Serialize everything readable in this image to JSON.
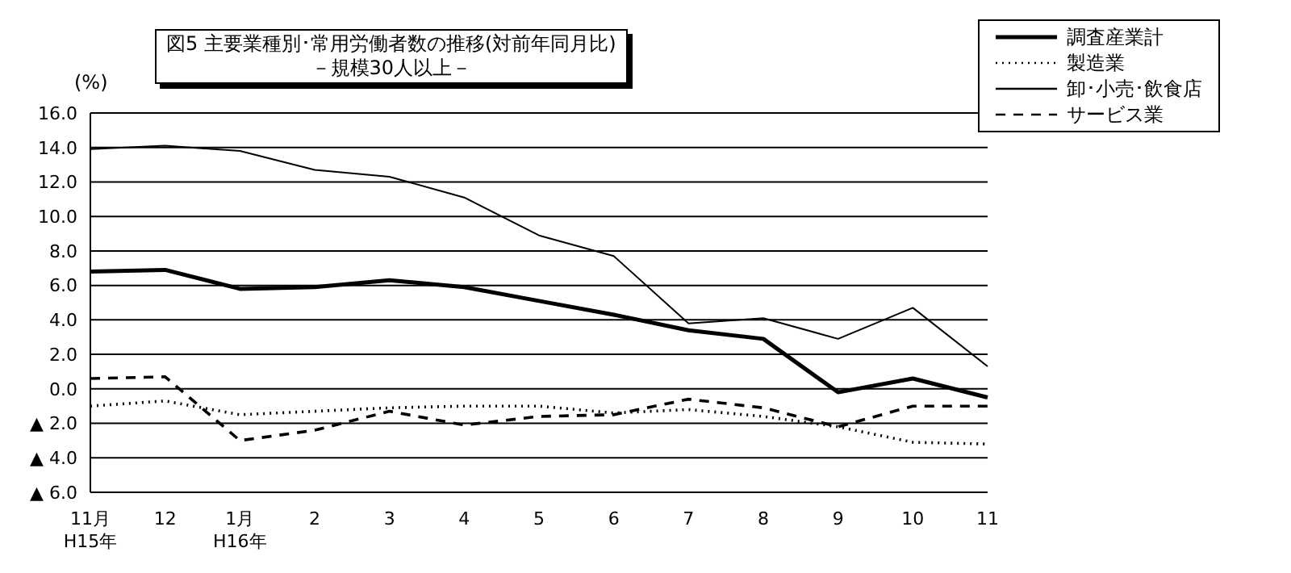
{
  "chart_data": {
    "type": "line",
    "title": "図5 主要業種別･常用労働者数の推移(対前年同月比)",
    "subtitle": "－規模30人以上－",
    "ylabel": "(%)",
    "categories": [
      "11月\nH15年",
      "12",
      "1月\nH16年",
      "2",
      "3",
      "4",
      "5",
      "6",
      "7",
      "8",
      "9",
      "10",
      "11"
    ],
    "series": [
      {
        "name": "調査産業計",
        "color": "#000000",
        "line_style": "solid",
        "values": [
          6.8,
          6.9,
          5.8,
          5.9,
          6.3,
          5.9,
          5.1,
          4.3,
          3.4,
          2.9,
          -0.2,
          0.6,
          -0.5
        ]
      },
      {
        "name": "製造業",
        "color": "#000000",
        "line_style": "dotted",
        "values": [
          -1.0,
          -0.7,
          -1.5,
          -1.3,
          -1.1,
          -1.0,
          -1.0,
          -1.4,
          -1.2,
          -1.6,
          -2.2,
          -3.1,
          -3.2
        ]
      },
      {
        "name": "卸･小売･飲食店",
        "color": "#000000",
        "line_style": "solid",
        "values": [
          13.9,
          14.1,
          13.8,
          12.7,
          12.3,
          11.1,
          8.9,
          7.7,
          3.8,
          4.1,
          2.9,
          4.7,
          1.3
        ]
      },
      {
        "name": "サービス業",
        "color": "#000000",
        "line_style": "dashed",
        "values": [
          0.6,
          0.7,
          -3.0,
          -2.4,
          -1.3,
          -2.1,
          -1.6,
          -1.5,
          -0.6,
          -1.1,
          -2.2,
          -1.0,
          -1.0
        ]
      }
    ],
    "ylim": [
      -6,
      16
    ],
    "yticks": [
      {
        "value": -6,
        "label": "▲ 6.0"
      },
      {
        "value": -4,
        "label": "▲ 4.0"
      },
      {
        "value": -2,
        "label": "▲ 2.0"
      },
      {
        "value": 0,
        "label": "0.0"
      },
      {
        "value": 2,
        "label": "2.0"
      },
      {
        "value": 4,
        "label": "4.0"
      },
      {
        "value": 6,
        "label": "6.0"
      },
      {
        "value": 8,
        "label": "8.0"
      },
      {
        "value": 10,
        "label": "10.0"
      },
      {
        "value": 12,
        "label": "12.0"
      },
      {
        "value": 14,
        "label": "14.0"
      },
      {
        "value": 16,
        "label": "16.0"
      }
    ],
    "grid": "y",
    "legend": "top right",
    "marker": "none"
  }
}
